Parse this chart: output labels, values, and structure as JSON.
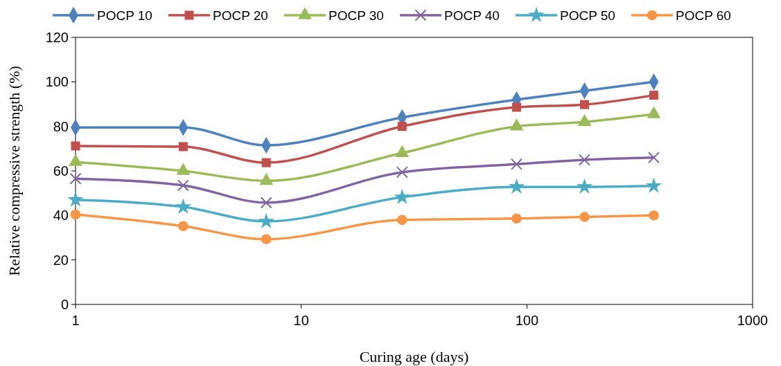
{
  "chart_data": {
    "type": "line",
    "xlabel": "Curing age (days)",
    "ylabel": "Relative compressive strength (%)",
    "log": "x",
    "xlim": [
      1,
      1000
    ],
    "xticks": [
      1,
      10,
      100,
      1000
    ],
    "ylim": [
      0,
      120
    ],
    "yticks": [
      0,
      20,
      40,
      60,
      80,
      100,
      120
    ],
    "grid": false,
    "legend": "top",
    "x": [
      1,
      3,
      7,
      28,
      90,
      180,
      365
    ],
    "series": [
      {
        "name": "POCP 10",
        "color": "#4f81bd",
        "marker": "diamond",
        "values": [
          79.5,
          79.5,
          71.5,
          84,
          92,
          96,
          100
        ]
      },
      {
        "name": "POCP 20",
        "color": "#c0504d",
        "marker": "square",
        "values": [
          71.2,
          70.9,
          63.7,
          80,
          88.6,
          89.8,
          94
        ]
      },
      {
        "name": "POCP 30",
        "color": "#9bbb59",
        "marker": "triangle",
        "values": [
          64,
          60,
          55.5,
          68,
          80,
          82,
          85.5
        ]
      },
      {
        "name": "POCP 40",
        "color": "#8064a2",
        "marker": "cross",
        "values": [
          56.5,
          53.5,
          45.7,
          59.4,
          63,
          65,
          66
        ]
      },
      {
        "name": "POCP 50",
        "color": "#4bacc6",
        "marker": "star",
        "values": [
          47,
          43.8,
          37.3,
          48.2,
          52.8,
          52.8,
          53.2
        ]
      },
      {
        "name": "POCP 60",
        "color": "#f79646",
        "marker": "circle",
        "values": [
          40.4,
          35.2,
          29.3,
          38,
          38.6,
          39.3,
          40
        ]
      }
    ]
  }
}
